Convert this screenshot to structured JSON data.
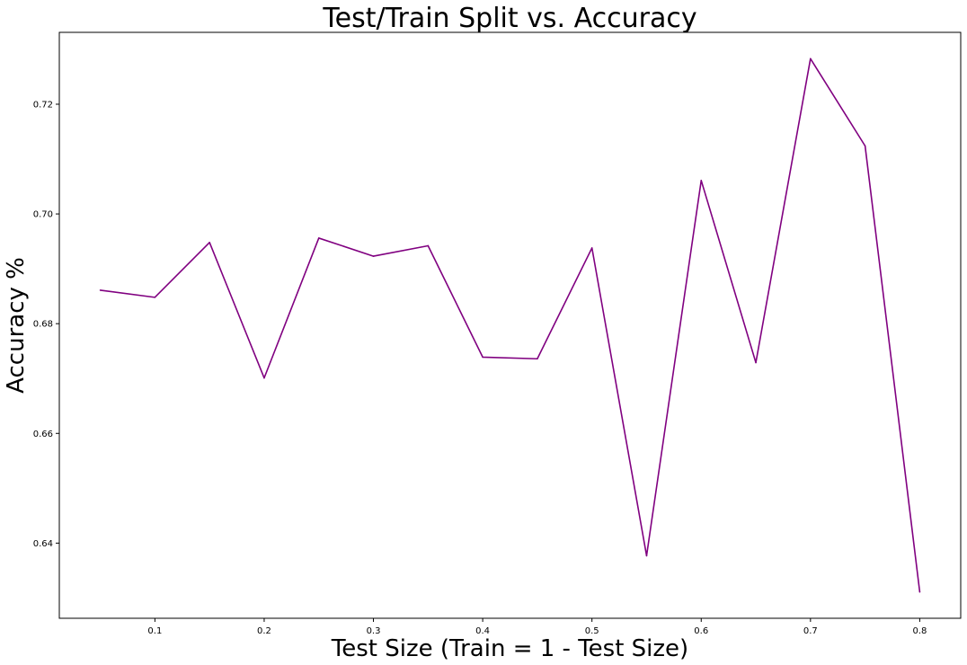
{
  "chart_data": {
    "type": "line",
    "title": "Test/Train Split vs. Accuracy",
    "xlabel": "Test Size (Train = 1 - Test Size)",
    "ylabel": "Accuracy %",
    "x": [
      0.05,
      0.1,
      0.15,
      0.2,
      0.25,
      0.3,
      0.35,
      0.4,
      0.45,
      0.5,
      0.55,
      0.6,
      0.65,
      0.7,
      0.75,
      0.8
    ],
    "series": [
      {
        "values": [
          0.6861,
          0.6848,
          0.6948,
          0.6701,
          0.6956,
          0.6923,
          0.6942,
          0.6739,
          0.6736,
          0.6938,
          0.6377,
          0.7061,
          0.6729,
          0.7283,
          0.7124,
          0.6311
        ],
        "color": "#800080"
      }
    ],
    "xticks": [
      "0.1",
      "0.2",
      "0.3",
      "0.4",
      "0.5",
      "0.6",
      "0.7",
      "0.8"
    ],
    "yticks": [
      "0.64",
      "0.66",
      "0.68",
      "0.70",
      "0.72"
    ],
    "xlim": [
      0.0125,
      0.8375
    ],
    "ylim": [
      0.6263,
      0.7331
    ],
    "grid": false,
    "legend": "none"
  }
}
